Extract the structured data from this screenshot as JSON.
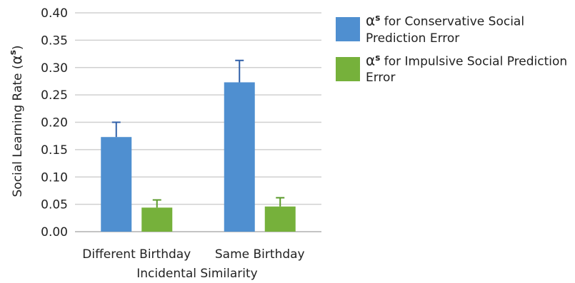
{
  "chart_data": {
    "type": "bar",
    "categories": [
      "Different Birthday",
      "Same Birthday"
    ],
    "series": [
      {
        "name": "α^s for Conservative Social Prediction Error",
        "legend_symbol": "α",
        "legend_superscript": "s",
        "legend_text": " for Conservative Social Prediction Error",
        "color": "#4f8fd0",
        "error_color": "#3060a8",
        "values": [
          0.173,
          0.273
        ],
        "error_upper": [
          0.027,
          0.04
        ]
      },
      {
        "name": "α^s for Impulsive Social Prediction Error",
        "legend_symbol": "α",
        "legend_superscript": "s",
        "legend_text": " for Impulsive Social Prediction Error",
        "color": "#76b13b",
        "error_color": "#5a9a2a",
        "values": [
          0.044,
          0.046
        ],
        "error_upper": [
          0.014,
          0.016
        ]
      }
    ],
    "xlabel": "Incidental Similarity",
    "ylabel_text": "Social Learning Rate (",
    "ylabel_symbol": "α",
    "ylabel_superscript": "s",
    "ylabel_close": ")",
    "ylim": [
      0,
      0.4
    ],
    "yticks": [
      "0.00",
      "0.05",
      "0.10",
      "0.15",
      "0.20",
      "0.25",
      "0.30",
      "0.35",
      "0.40"
    ],
    "ytick_values": [
      0,
      0.05,
      0.1,
      0.15,
      0.2,
      0.25,
      0.3,
      0.35,
      0.4
    ],
    "grid": true,
    "legend_position": "right"
  }
}
